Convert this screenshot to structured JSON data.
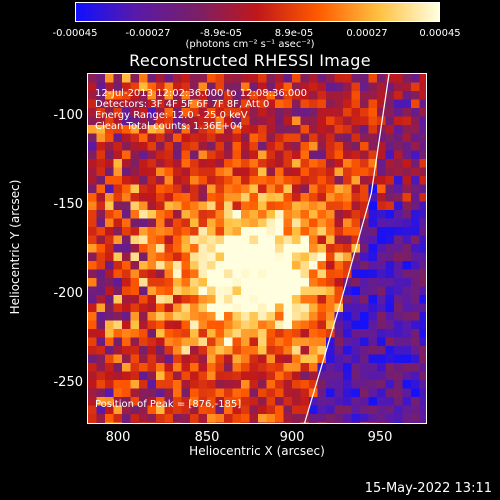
{
  "colorbar": {
    "ticks": [
      "-0.00045",
      "-0.00027",
      "-8.9e-05",
      "8.9e-05",
      "0.00027",
      "0.00045"
    ],
    "unit": "(photons cm⁻² s⁻¹ asec⁻²)",
    "colors": [
      "#1010ff",
      "#5a1aa8",
      "#7a1f66",
      "#c0181a",
      "#ff5a00",
      "#ffc040",
      "#ffffe0"
    ]
  },
  "chart_data": {
    "type": "heatmap",
    "title": "Reconstructed RHESSI Image",
    "xlabel": "Heliocentric X (arcsec)",
    "ylabel": "Heliocentric Y (arcsec)",
    "xlim": [
      782,
      974
    ],
    "ylim": [
      -270,
      -73
    ],
    "xticks": [
      "800",
      "850",
      "900",
      "950"
    ],
    "xtick_values": [
      800,
      850,
      900,
      950
    ],
    "yticks": [
      "-100",
      "-150",
      "-200",
      "-250"
    ],
    "ytick_values": [
      -100,
      -150,
      -200,
      -250
    ],
    "clim": [
      -0.00045,
      0.00045
    ],
    "peak": [
      876,
      -185
    ],
    "limb_line": [
      [
        904,
        -270
      ],
      [
        925,
        -200
      ],
      [
        942,
        -140
      ],
      [
        952,
        -73
      ]
    ]
  },
  "info": {
    "line1": "12-Jul-2013 12:02:36.000 to 12:08:36.000",
    "line2": "Detectors: 3F 4F 5F 6F 7F 8F, Att 0",
    "line3": "Energy Range: 12.0 - 25.0 keV",
    "line4": "Clean     Total counts: 1.36E+04",
    "peak_label": "Position of Peak = [876,-185]"
  },
  "footer": {
    "timestamp": "15-May-2022 13:11"
  }
}
